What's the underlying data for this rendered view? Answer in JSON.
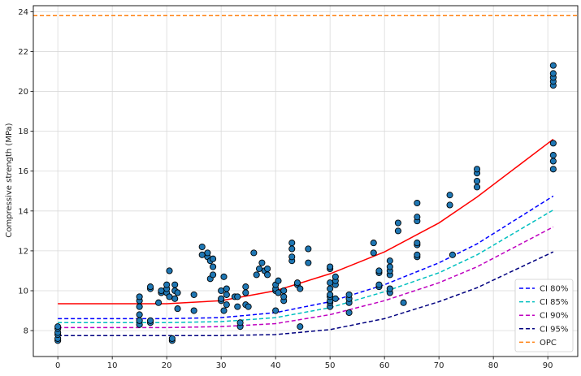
{
  "chart_data": {
    "type": "scatter",
    "title": "",
    "xlabel": "",
    "ylabel": "Compressive strength (MPa)",
    "xlim": [
      -4.5,
      95.5
    ],
    "ylim": [
      6.7,
      24.3
    ],
    "xticks": [
      0,
      10,
      20,
      30,
      40,
      50,
      60,
      70,
      80,
      90
    ],
    "yticks": [
      8,
      10,
      12,
      14,
      16,
      18,
      20,
      22,
      24
    ],
    "grid": true,
    "legend_position": "bottom-right",
    "colors": {
      "points_fill": "#1f77b4",
      "points_edge": "#000000",
      "fit": "#ff0000",
      "ci80": "#0000ff",
      "ci85": "#00bfbf",
      "ci90": "#bf00bf",
      "ci95": "#00007f",
      "opc": "#ff7f0e"
    },
    "scatter_points": [
      [
        0,
        7.5
      ],
      [
        0,
        7.6
      ],
      [
        0,
        7.8
      ],
      [
        0,
        7.9
      ],
      [
        0,
        8.1
      ],
      [
        0,
        8.2
      ],
      [
        15,
        8.3
      ],
      [
        15,
        8.5
      ],
      [
        15,
        8.8
      ],
      [
        15,
        9.2
      ],
      [
        15,
        9.5
      ],
      [
        15,
        9.7
      ],
      [
        17,
        8.4
      ],
      [
        17,
        8.5
      ],
      [
        17,
        10.1
      ],
      [
        17,
        10.2
      ],
      [
        18.5,
        9.4
      ],
      [
        19,
        9.9
      ],
      [
        19,
        10.0
      ],
      [
        20,
        9.9
      ],
      [
        20,
        10.1
      ],
      [
        20,
        10.3
      ],
      [
        20.5,
        9.7
      ],
      [
        20.5,
        11.0
      ],
      [
        21,
        7.5
      ],
      [
        21,
        7.6
      ],
      [
        21.5,
        9.6
      ],
      [
        21.5,
        10.0
      ],
      [
        21.5,
        10.3
      ],
      [
        22,
        9.1
      ],
      [
        22,
        9.9
      ],
      [
        25,
        9.0
      ],
      [
        25,
        9.8
      ],
      [
        26.5,
        11.8
      ],
      [
        26.5,
        12.2
      ],
      [
        27.5,
        11.7
      ],
      [
        27.5,
        11.9
      ],
      [
        28,
        10.6
      ],
      [
        28,
        11.5
      ],
      [
        28.5,
        10.8
      ],
      [
        28.5,
        11.2
      ],
      [
        28.5,
        11.6
      ],
      [
        30,
        9.5
      ],
      [
        30,
        9.6
      ],
      [
        30,
        10.0
      ],
      [
        30.5,
        9.0
      ],
      [
        30.5,
        10.7
      ],
      [
        31,
        9.3
      ],
      [
        31,
        9.8
      ],
      [
        31,
        10.1
      ],
      [
        32.5,
        9.7
      ],
      [
        33,
        9.2
      ],
      [
        33,
        9.7
      ],
      [
        33.5,
        8.2
      ],
      [
        33.5,
        8.4
      ],
      [
        34.5,
        9.3
      ],
      [
        34.5,
        9.9
      ],
      [
        34.5,
        10.2
      ],
      [
        35,
        9.2
      ],
      [
        36,
        11.9
      ],
      [
        36.5,
        10.8
      ],
      [
        37,
        11.1
      ],
      [
        37.5,
        11.4
      ],
      [
        38,
        11.0
      ],
      [
        38.5,
        10.8
      ],
      [
        38.5,
        11.1
      ],
      [
        40,
        9.0
      ],
      [
        40,
        10.0
      ],
      [
        40,
        10.1
      ],
      [
        40,
        10.3
      ],
      [
        40.5,
        9.9
      ],
      [
        40.5,
        10.5
      ],
      [
        41.5,
        9.5
      ],
      [
        41.5,
        9.7
      ],
      [
        41.5,
        10.0
      ],
      [
        43,
        11.5
      ],
      [
        43,
        11.7
      ],
      [
        43,
        12.1
      ],
      [
        43,
        12.4
      ],
      [
        44,
        10.3
      ],
      [
        44,
        10.4
      ],
      [
        44.5,
        8.2
      ],
      [
        44.5,
        10.1
      ],
      [
        46,
        11.4
      ],
      [
        46,
        12.1
      ],
      [
        50,
        9.2
      ],
      [
        50,
        9.4
      ],
      [
        50,
        9.5
      ],
      [
        50,
        9.7
      ],
      [
        50,
        9.8
      ],
      [
        50,
        10.1
      ],
      [
        50,
        10.4
      ],
      [
        50,
        11.1
      ],
      [
        50,
        11.2
      ],
      [
        51,
        9.6
      ],
      [
        51,
        10.3
      ],
      [
        51,
        10.5
      ],
      [
        51,
        10.7
      ],
      [
        53.5,
        8.9
      ],
      [
        53.5,
        9.4
      ],
      [
        53.5,
        9.6
      ],
      [
        53.5,
        9.8
      ],
      [
        58,
        11.9
      ],
      [
        58,
        12.4
      ],
      [
        59,
        10.2
      ],
      [
        59,
        10.3
      ],
      [
        59,
        10.9
      ],
      [
        59,
        11.0
      ],
      [
        61,
        9.9
      ],
      [
        61,
        10.1
      ],
      [
        61,
        10.8
      ],
      [
        61,
        11.0
      ],
      [
        61,
        11.2
      ],
      [
        61,
        11.5
      ],
      [
        62.5,
        13.0
      ],
      [
        62.5,
        13.4
      ],
      [
        63.5,
        9.4
      ],
      [
        66,
        11.7
      ],
      [
        66,
        11.8
      ],
      [
        66,
        12.3
      ],
      [
        66,
        12.4
      ],
      [
        66,
        13.5
      ],
      [
        66,
        13.7
      ],
      [
        66,
        14.4
      ],
      [
        72,
        14.3
      ],
      [
        72,
        14.8
      ],
      [
        72.5,
        11.8
      ],
      [
        77,
        15.2
      ],
      [
        77,
        15.5
      ],
      [
        77,
        15.9
      ],
      [
        77,
        16.1
      ],
      [
        91,
        16.1
      ],
      [
        91,
        16.5
      ],
      [
        91,
        16.8
      ],
      [
        91,
        17.4
      ],
      [
        91,
        20.3
      ],
      [
        91,
        20.5
      ],
      [
        91,
        20.7
      ],
      [
        91,
        20.9
      ],
      [
        91,
        21.3
      ]
    ],
    "x_curve": [
      0,
      10,
      20,
      30,
      40,
      50,
      60,
      70,
      77,
      91
    ],
    "series": [
      {
        "name": "",
        "key": "fit",
        "dash": false,
        "values": [
          9.35,
          9.35,
          9.35,
          9.5,
          10.0,
          10.85,
          11.95,
          13.4,
          14.7,
          17.6
        ]
      },
      {
        "name": "CI 80%",
        "key": "ci80",
        "dash": true,
        "values": [
          8.6,
          8.6,
          8.6,
          8.65,
          8.9,
          9.45,
          10.3,
          11.4,
          12.35,
          14.75
        ]
      },
      {
        "name": "CI 85%",
        "key": "ci85",
        "dash": true,
        "values": [
          8.4,
          8.4,
          8.4,
          8.45,
          8.65,
          9.15,
          9.95,
          10.9,
          11.8,
          14.05
        ]
      },
      {
        "name": "CI 90%",
        "key": "ci90",
        "dash": true,
        "values": [
          8.15,
          8.15,
          8.15,
          8.2,
          8.35,
          8.8,
          9.5,
          10.4,
          11.2,
          13.2
        ]
      },
      {
        "name": "CI 95%",
        "key": "ci95",
        "dash": true,
        "values": [
          7.75,
          7.75,
          7.75,
          7.75,
          7.8,
          8.05,
          8.6,
          9.45,
          10.15,
          11.95
        ]
      }
    ],
    "opc": {
      "name": "OPC",
      "value": 23.8
    }
  }
}
